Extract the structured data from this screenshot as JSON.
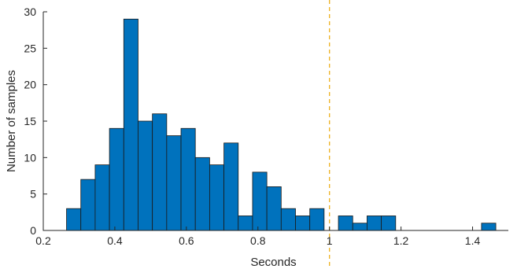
{
  "chart_data": {
    "type": "bar",
    "subtype": "histogram",
    "xlabel": "Seconds",
    "ylabel": "Number of samples",
    "xlim": [
      0.2,
      1.5
    ],
    "ylim": [
      0,
      30
    ],
    "x_ticks": [
      0.2,
      0.4,
      0.6,
      0.8,
      1.0,
      1.2,
      1.4
    ],
    "x_tick_labels": [
      "0.2",
      "0.4",
      "0.6",
      "0.8",
      "1",
      "1.2",
      "1.4"
    ],
    "y_ticks": [
      0,
      5,
      10,
      15,
      20,
      25,
      30
    ],
    "y_tick_labels": [
      "0",
      "5",
      "10",
      "15",
      "20",
      "25",
      "30"
    ],
    "bin_width": 0.04,
    "bin_edges_start": 0.265,
    "counts": [
      3,
      7,
      9,
      14,
      29,
      15,
      16,
      13,
      14,
      10,
      9,
      12,
      2,
      8,
      6,
      3,
      2,
      3,
      0,
      2,
      1,
      2,
      2,
      0,
      0,
      0,
      0,
      0,
      0,
      1
    ],
    "reference_line": {
      "x": 1.0,
      "orientation": "vertical",
      "style": "dashed"
    },
    "grid": false,
    "colors": {
      "bar": "#0072BD",
      "edge": "#1a1a1a",
      "reference": "#EDB120"
    }
  }
}
